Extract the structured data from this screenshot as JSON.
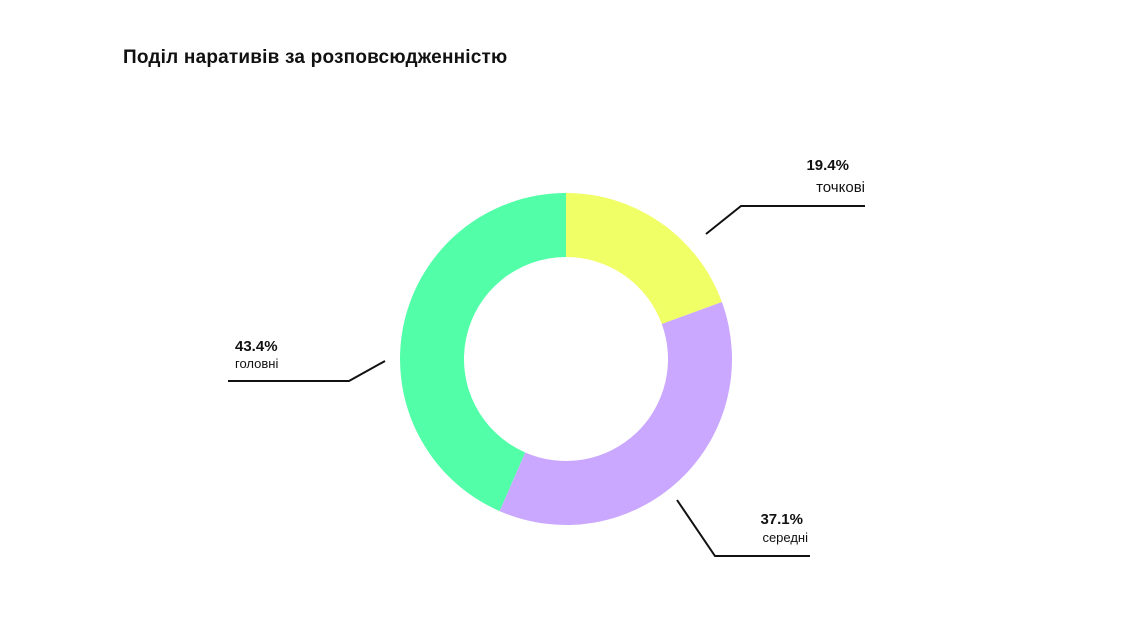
{
  "chart_data": {
    "type": "pie",
    "title": "Поділ наративів за розповсюдженністю",
    "slices": [
      {
        "label": "точкові",
        "value": 19.4,
        "value_label": "19.4%",
        "color": "#F0FF66"
      },
      {
        "label": "середні",
        "value": 37.1,
        "value_label": "37.1%",
        "color": "#CBA8FF"
      },
      {
        "label": "головні",
        "value": 43.4,
        "value_label": "43.4%",
        "color": "#52FFA8"
      }
    ],
    "donut": true,
    "start": "top",
    "direction": "clockwise"
  }
}
